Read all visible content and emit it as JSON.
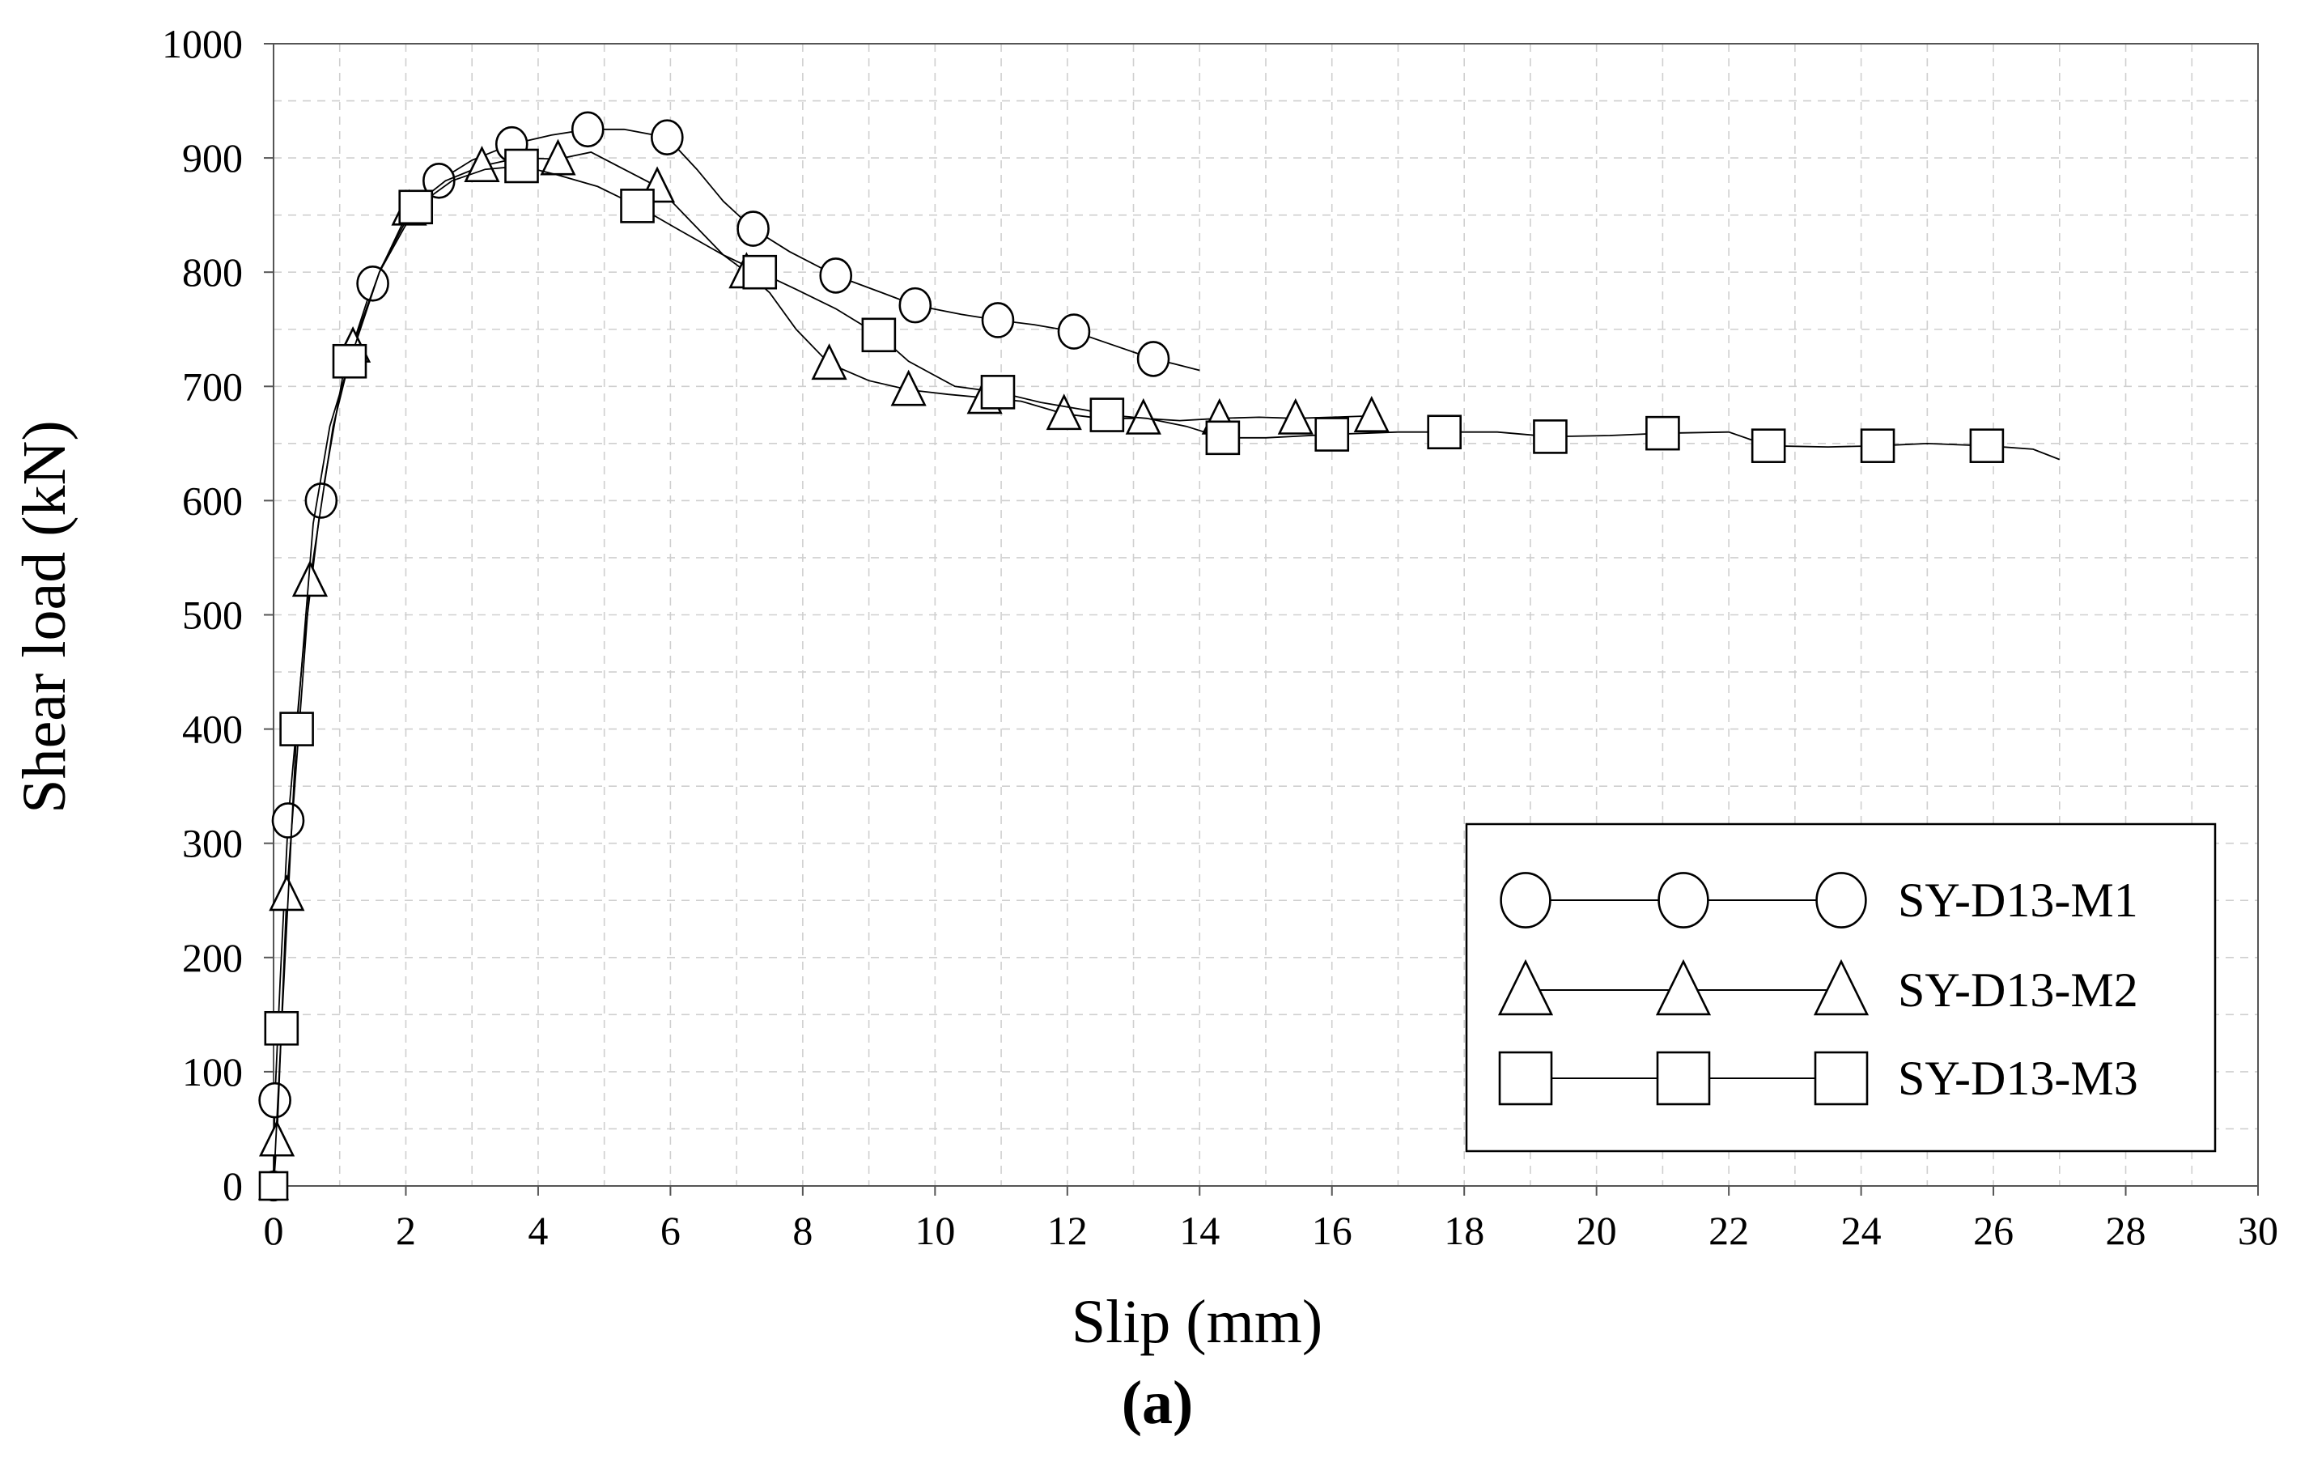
{
  "chart_data": {
    "type": "line",
    "title": "",
    "panel_label": "(a)",
    "xlabel": "Slip (mm)",
    "ylabel": "Shear load (kN)",
    "xlim": [
      0,
      30
    ],
    "ylim": [
      0,
      1000
    ],
    "xticks": [
      0,
      2,
      4,
      6,
      8,
      10,
      12,
      14,
      16,
      18,
      20,
      22,
      24,
      26,
      28,
      30
    ],
    "yticks": [
      0,
      100,
      200,
      300,
      400,
      500,
      600,
      700,
      800,
      900,
      1000
    ],
    "grid": true,
    "legend_position": "bottom-right",
    "series": [
      {
        "name": "SY-D13-M1",
        "marker": "circle",
        "curve": [
          [
            0,
            0
          ],
          [
            0.02,
            75
          ],
          [
            0.1,
            180
          ],
          [
            0.22,
            320
          ],
          [
            0.45,
            470
          ],
          [
            0.72,
            600
          ],
          [
            1.05,
            710
          ],
          [
            1.5,
            790
          ],
          [
            2.0,
            845
          ],
          [
            2.5,
            880
          ],
          [
            3.0,
            898
          ],
          [
            3.6,
            912
          ],
          [
            4.2,
            920
          ],
          [
            4.75,
            925
          ],
          [
            5.3,
            925
          ],
          [
            5.95,
            918
          ],
          [
            6.4,
            890
          ],
          [
            6.8,
            862
          ],
          [
            7.25,
            838
          ],
          [
            7.8,
            818
          ],
          [
            8.5,
            797
          ],
          [
            9.2,
            782
          ],
          [
            9.7,
            771
          ],
          [
            10.4,
            763
          ],
          [
            10.95,
            758
          ],
          [
            11.5,
            754
          ],
          [
            12.1,
            748
          ],
          [
            12.6,
            738
          ],
          [
            13.3,
            724
          ],
          [
            13.6,
            720
          ],
          [
            14.0,
            714
          ]
        ],
        "markers": [
          [
            0.02,
            75
          ],
          [
            0.22,
            320
          ],
          [
            0.72,
            600
          ],
          [
            1.5,
            790
          ],
          [
            2.5,
            880
          ],
          [
            3.6,
            912
          ],
          [
            4.75,
            925
          ],
          [
            5.95,
            918
          ],
          [
            7.25,
            838
          ],
          [
            8.5,
            797
          ],
          [
            9.7,
            771
          ],
          [
            10.95,
            758
          ],
          [
            12.1,
            748
          ],
          [
            13.3,
            724
          ]
        ]
      },
      {
        "name": "SY-D13-M2",
        "marker": "triangle",
        "curve": [
          [
            0,
            0
          ],
          [
            0.05,
            40
          ],
          [
            0.2,
            255
          ],
          [
            0.55,
            530
          ],
          [
            0.9,
            665
          ],
          [
            1.2,
            735
          ],
          [
            1.6,
            800
          ],
          [
            2.05,
            855
          ],
          [
            2.6,
            880
          ],
          [
            3.15,
            893
          ],
          [
            3.7,
            900
          ],
          [
            4.3,
            899
          ],
          [
            4.8,
            905
          ],
          [
            5.3,
            890
          ],
          [
            5.8,
            875
          ],
          [
            6.3,
            845
          ],
          [
            6.8,
            815
          ],
          [
            7.15,
            800
          ],
          [
            7.5,
            782
          ],
          [
            7.9,
            750
          ],
          [
            8.4,
            720
          ],
          [
            9.0,
            705
          ],
          [
            9.6,
            697
          ],
          [
            10.2,
            693
          ],
          [
            10.75,
            690
          ],
          [
            11.3,
            687
          ],
          [
            11.95,
            676
          ],
          [
            12.5,
            672
          ],
          [
            13.15,
            672
          ],
          [
            13.7,
            670
          ],
          [
            14.3,
            672
          ],
          [
            14.9,
            673
          ],
          [
            15.45,
            672
          ],
          [
            16.0,
            673
          ],
          [
            16.5,
            674
          ],
          [
            16.6,
            674
          ]
        ],
        "markers": [
          [
            0.05,
            40
          ],
          [
            0.2,
            255
          ],
          [
            0.55,
            530
          ],
          [
            1.2,
            735
          ],
          [
            2.05,
            855
          ],
          [
            3.15,
            893
          ],
          [
            4.3,
            899
          ],
          [
            5.8,
            875
          ],
          [
            7.15,
            800
          ],
          [
            8.4,
            720
          ],
          [
            9.6,
            697
          ],
          [
            10.75,
            690
          ],
          [
            11.95,
            676
          ],
          [
            13.15,
            672
          ],
          [
            14.3,
            672
          ],
          [
            15.45,
            672
          ],
          [
            16.6,
            674
          ]
        ]
      },
      {
        "name": "SY-D13-M3",
        "marker": "square",
        "curve": [
          [
            0,
            0
          ],
          [
            0.12,
            138
          ],
          [
            0.35,
            400
          ],
          [
            0.6,
            580
          ],
          [
            0.85,
            665
          ],
          [
            1.15,
            722
          ],
          [
            1.6,
            800
          ],
          [
            2.15,
            857
          ],
          [
            2.7,
            880
          ],
          [
            3.2,
            890
          ],
          [
            3.75,
            893
          ],
          [
            4.3,
            885
          ],
          [
            4.9,
            875
          ],
          [
            5.5,
            858
          ],
          [
            6.1,
            838
          ],
          [
            6.8,
            815
          ],
          [
            7.35,
            800
          ],
          [
            7.9,
            785
          ],
          [
            8.5,
            768
          ],
          [
            9.15,
            745
          ],
          [
            9.6,
            722
          ],
          [
            10.3,
            700
          ],
          [
            10.95,
            695
          ],
          [
            11.6,
            686
          ],
          [
            12.3,
            679
          ],
          [
            12.6,
            675
          ],
          [
            13.2,
            672
          ],
          [
            13.8,
            665
          ],
          [
            14.35,
            655
          ],
          [
            15.0,
            655
          ],
          [
            16.0,
            658
          ],
          [
            17.0,
            660
          ],
          [
            17.7,
            660
          ],
          [
            18.5,
            660
          ],
          [
            19.3,
            656
          ],
          [
            20.2,
            657
          ],
          [
            21.0,
            659
          ],
          [
            22.0,
            660
          ],
          [
            22.6,
            648
          ],
          [
            23.5,
            647
          ],
          [
            24.25,
            648
          ],
          [
            25.0,
            650
          ],
          [
            25.9,
            648
          ],
          [
            26.6,
            645
          ],
          [
            27.0,
            636
          ]
        ],
        "markers": [
          [
            0.12,
            138
          ],
          [
            0.35,
            400
          ],
          [
            1.15,
            722
          ],
          [
            2.15,
            857
          ],
          [
            3.75,
            893
          ],
          [
            5.5,
            858
          ],
          [
            7.35,
            800
          ],
          [
            9.15,
            745
          ],
          [
            10.95,
            695
          ],
          [
            12.6,
            675
          ],
          [
            14.35,
            655
          ],
          [
            16.0,
            658
          ],
          [
            17.7,
            660
          ],
          [
            19.3,
            656
          ],
          [
            21.0,
            659
          ],
          [
            22.6,
            648
          ],
          [
            24.25,
            648
          ],
          [
            25.9,
            648
          ]
        ]
      }
    ]
  }
}
